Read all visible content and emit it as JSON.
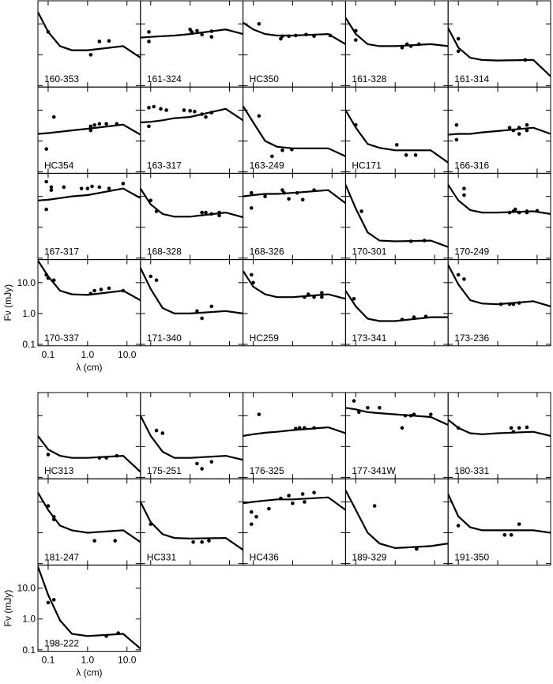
{
  "chart_data": [
    {
      "type": "line",
      "x_label": "λ (cm)",
      "y_label": "Fν (mJy)",
      "log_x": true,
      "log_y": true,
      "color": "#000000",
      "xlim": [
        0.055,
        22
      ],
      "ylim": [
        0.09,
        56
      ],
      "xticks": [
        0.1,
        {
          "value": 1,
          "label": "1.0"
        },
        {
          "value": 10,
          "label": "10.0"
        }
      ],
      "yticks": [
        0.1,
        {
          "value": 1,
          "label": "1.0"
        },
        {
          "value": 10,
          "label": "10.0"
        }
      ],
      "model_x": [
        0.055,
        0.1,
        0.2,
        0.4,
        1,
        8,
        22
      ],
      "panels": [
        {
          "label": "160-353",
          "model": [
            24,
            5.5,
            1.9,
            1.4,
            1.4,
            1.9,
            0.8
          ],
          "points": {
            "x": [
              0.1,
              1.2,
              2,
              3.5
            ],
            "y": [
              5.5,
              1.0,
              2.7,
              2.8
            ]
          }
        },
        {
          "label": "161-324",
          "model": [
            3.6,
            3.8,
            4.0,
            4.2,
            4.7,
            6.6,
            4.7
          ],
          "points": {
            "x": [
              0.09,
              0.09,
              1.0,
              1.1,
              1.5,
              2,
              3.5,
              3.5
            ],
            "y": [
              5.5,
              2.7,
              6.6,
              5.5,
              6.0,
              4.5,
              5.8,
              3.8
            ]
          }
        },
        {
          "label": "HC350",
          "model": [
            11,
            6.6,
            4.7,
            4.2,
            4.2,
            4.7,
            2.2
          ],
          "points": {
            "x": [
              0.14,
              0.5,
              0.55,
              0.8,
              1.2,
              2.2,
              3.5,
              9
            ],
            "y": [
              10,
              3.3,
              4.0,
              4.0,
              4.2,
              4.5,
              4.0,
              4.2
            ]
          }
        },
        {
          "label": "161-328",
          "model": [
            16,
            4.7,
            2.2,
            1.9,
            1.9,
            2.2,
            1.9
          ],
          "points": {
            "x": [
              0.1,
              0.1,
              1.5,
              2,
              2.5,
              4
            ],
            "y": [
              6.0,
              3.0,
              1.7,
              2.2,
              1.9,
              2.2
            ]
          }
        },
        {
          "label": "161-314",
          "model": [
            7.4,
            1.7,
            0.8,
            0.68,
            0.65,
            0.68,
            0.2
          ],
          "points": {
            "x": [
              0.1,
              0.1,
              5
            ],
            "y": [
              3.3,
              1.3,
              0.68
            ]
          }
        },
        {
          "label": "HC354",
          "model": [
            1.7,
            1.8,
            2.0,
            2.2,
            2.5,
            3.4,
            1.6
          ],
          "points": {
            "x": [
              0.09,
              0.14,
              1.2,
              1.2,
              1.5,
              2,
              3,
              5.5
            ],
            "y": [
              0.55,
              6.0,
              3.0,
              2.2,
              3.3,
              3.6,
              3.6,
              3.6
            ]
          }
        },
        {
          "label": "163-317",
          "model": [
            4.0,
            4.2,
            4.7,
            5.5,
            6.0,
            11,
            4.7
          ],
          "points": {
            "x": [
              0.09,
              0.12,
              0.18,
              0.25,
              0.7,
              1,
              1.3,
              2,
              2.5,
              3.5,
              0.09
            ],
            "y": [
              12,
              13,
              11,
              10,
              10,
              9.5,
              9,
              7.4,
              6.0,
              8.3,
              3.0
            ]
          }
        },
        {
          "label": "163-249",
          "model": [
            13.5,
            4.0,
            1.0,
            0.65,
            0.58,
            0.58,
            0.32
          ],
          "points": {
            "x": [
              0.14,
              0.3,
              0.55,
              0.95
            ],
            "y": [
              6.5,
              0.32,
              0.5,
              0.53
            ]
          }
        },
        {
          "label": "HC171",
          "model": [
            10,
            2.7,
            0.8,
            0.6,
            0.5,
            0.5,
            0.2
          ],
          "points": {
            "x": [
              0.1,
              1.1,
              1.9,
              3.3
            ],
            "y": [
              3.3,
              0.75,
              0.35,
              0.35
            ]
          }
        },
        {
          "label": "166-316",
          "model": [
            1.6,
            1.7,
            1.7,
            1.9,
            2.1,
            2.7,
            1.7
          ],
          "points": {
            "x": [
              0.09,
              0.09,
              2,
              2.5,
              3.5,
              3.5,
              5.5,
              5.5
            ],
            "y": [
              3.3,
              1.1,
              2.7,
              2.2,
              1.7,
              2.7,
              3.3,
              2.2
            ]
          }
        },
        {
          "label": "167-317",
          "model": [
            7.4,
            7.8,
            8.8,
            10,
            11,
            18,
            8.8
          ],
          "points": {
            "x": [
              0.09,
              0.09,
              0.12,
              0.12,
              0.25,
              0.7,
              1,
              1.3,
              2,
              3.5,
              8
            ],
            "y": [
              30,
              3.8,
              20,
              16,
              20,
              18,
              18,
              21,
              20,
              18,
              26
            ]
          }
        },
        {
          "label": "168-328",
          "model": [
            18,
            5.5,
            2.7,
            2.2,
            2.2,
            3.0,
            2.1
          ],
          "points": {
            "x": [
              0.1,
              0.14,
              2,
              2.5,
              3.5,
              5.5,
              5.5
            ],
            "y": [
              7.4,
              3.3,
              3.0,
              3.0,
              2.7,
              3.0,
              2.4
            ]
          }
        },
        {
          "label": "168-326",
          "model": [
            10,
            11,
            12,
            12,
            13,
            16,
            6.0
          ],
          "points": {
            "x": [
              0.09,
              0.09,
              0.2,
              0.55,
              0.6,
              0.8,
              1.3,
              1.8,
              3.5
            ],
            "y": [
              13,
              4.2,
              10,
              16,
              13,
              8.3,
              13,
              7.8,
              16
            ]
          }
        },
        {
          "label": "170-301",
          "model": [
            24,
            4.0,
            0.68,
            0.37,
            0.35,
            0.37,
            0.23
          ],
          "points": {
            "x": [
              0.14,
              2.5,
              5.5
            ],
            "y": [
              3.3,
              0.35,
              0.37
            ]
          }
        },
        {
          "label": "170-249",
          "model": [
            24,
            7.4,
            3.6,
            3.0,
            3.0,
            3.3,
            2.7
          ],
          "points": {
            "x": [
              0.14,
              0.14,
              2,
              2.5,
              2.8,
              3.5,
              5.5,
              5.5,
              10
            ],
            "y": [
              18,
              11,
              3.0,
              3.3,
              3.8,
              3.0,
              3.3,
              3.0,
              3.4
            ]
          }
        },
        {
          "label": "170-337",
          "model": [
            52,
            16,
            5.5,
            4.2,
            4.0,
            5.5,
            2.7
          ],
          "points": {
            "x": [
              0.09,
              0.1,
              0.14,
              1.2,
              1.5,
              2.2,
              3.5,
              8
            ],
            "y": [
              18,
              14,
              12,
              4.4,
              5.5,
              6.0,
              6.6,
              5.5
            ]
          }
        },
        {
          "label": "171-340",
          "model": [
            30,
            6.2,
            1.5,
            1.0,
            1.0,
            1.2,
            1.0
          ],
          "points": {
            "x": [
              0.1,
              0.14,
              1.5,
              2,
              3.5
            ],
            "y": [
              16,
              12,
              1.2,
              0.7,
              1.7
            ]
          }
        },
        {
          "label": "HC259",
          "model": [
            24,
            7.4,
            4.2,
            3.4,
            3.4,
            4.2,
            3.0
          ],
          "points": {
            "x": [
              0.09,
              0.1,
              2,
              2.5,
              3.5,
              5.5,
              5.5
            ],
            "y": [
              18,
              10,
              3.4,
              4.2,
              3.4,
              3.4,
              4.7
            ]
          }
        },
        {
          "label": "173-341",
          "model": [
            5.5,
            1.7,
            0.68,
            0.57,
            0.57,
            0.76,
            0.76
          ],
          "points": {
            "x": [
              0.09,
              1.5,
              3,
              6
            ],
            "y": [
              3.0,
              0.64,
              0.76,
              0.8
            ]
          }
        },
        {
          "label": "173-236",
          "model": [
            38,
            8.8,
            2.7,
            2.1,
            2.0,
            2.5,
            1.7
          ],
          "points": {
            "x": [
              0.1,
              0.14,
              1.2,
              2,
              2.5,
              3.5
            ],
            "y": [
              18,
              13,
              2.0,
              2.0,
              2.0,
              2.2
            ]
          }
        }
      ]
    },
    {
      "type": "line",
      "x_label": "λ (cm)",
      "y_label": "Fν (mJy)",
      "log_x": true,
      "log_y": true,
      "color": "#000000",
      "xlim": [
        0.055,
        22
      ],
      "ylim": [
        0.09,
        56
      ],
      "xticks": [
        0.1,
        {
          "value": 1,
          "label": "1.0"
        },
        {
          "value": 10,
          "label": "10.0"
        }
      ],
      "yticks": [
        0.1,
        {
          "value": 1,
          "label": "1.0"
        },
        {
          "value": 10,
          "label": "10.0"
        }
      ],
      "model_x": [
        0.055,
        0.1,
        0.2,
        0.4,
        1,
        8,
        22
      ],
      "panels": [
        {
          "label": "HC313",
          "model": [
            2.2,
            0.8,
            0.5,
            0.43,
            0.43,
            0.5,
            0.15
          ],
          "points": {
            "x": [
              0.1,
              2,
              3,
              5.5
            ],
            "y": [
              0.55,
              0.43,
              0.43,
              0.5
            ]
          }
        },
        {
          "label": "175-251",
          "model": [
            10,
            2.2,
            0.68,
            0.43,
            0.43,
            0.5,
            0.37
          ],
          "points": {
            "x": [
              0.14,
              0.2,
              1.5,
              2,
              3.5
            ],
            "y": [
              3.3,
              2.7,
              0.28,
              0.19,
              0.32
            ]
          }
        },
        {
          "label": "176-325",
          "model": [
            2.2,
            2.5,
            2.8,
            3.0,
            3.4,
            4.2,
            2.7
          ],
          "points": {
            "x": [
              0.14,
              1.2,
              1.5,
              2,
              3.5
            ],
            "y": [
              11,
              3.8,
              4.0,
              4.0,
              4.0
            ]
          }
        },
        {
          "label": "177-341W",
          "model": [
            18,
            16,
            13,
            12,
            11,
            9,
            5
          ],
          "points": {
            "x": [
              0.09,
              0.12,
              0.2,
              0.4,
              1.5,
              1.8,
              2.5,
              3,
              8
            ],
            "y": [
              30,
              13,
              18,
              18,
              4.0,
              10,
              10,
              11,
              11
            ]
          }
        },
        {
          "label": "180-331",
          "model": [
            7.4,
            4.0,
            2.7,
            2.5,
            2.7,
            3.0,
            2.2
          ],
          "points": {
            "x": [
              0.1,
              2.2,
              2.5,
              3.5,
              5.5
            ],
            "y": [
              4.0,
              4.0,
              3.0,
              4.0,
              4.2
            ]
          }
        },
        {
          "label": "181-247",
          "model": [
            20,
            5.5,
            1.7,
            1.2,
            1.0,
            1.2,
            0.5
          ],
          "points": {
            "x": [
              0.1,
              0.14,
              0.14,
              1.5,
              5
            ],
            "y": [
              7.4,
              3.3,
              2.7,
              0.55,
              0.55
            ]
          }
        },
        {
          "label": "HC331",
          "model": [
            10,
            2.2,
            0.9,
            0.68,
            0.65,
            0.68,
            0.28
          ],
          "points": {
            "x": [
              0.1,
              1.2,
              2,
              3
            ],
            "y": [
              1.9,
              0.5,
              0.5,
              0.55
            ]
          }
        },
        {
          "label": "HC436",
          "model": [
            9,
            10,
            11,
            12,
            12,
            14,
            5.5
          ],
          "points": {
            "x": [
              0.09,
              0.09,
              0.12,
              0.25,
              0.5,
              0.8,
              1.8,
              1,
              2,
              3.5
            ],
            "y": [
              1.9,
              4.7,
              3.3,
              6.0,
              13,
              16,
              18,
              9,
              10,
              20
            ]
          }
        },
        {
          "label": "189-329",
          "model": [
            24,
            5.5,
            1.0,
            0.45,
            0.32,
            0.37,
            0.45
          ],
          "points": {
            "x": [
              0.3,
              3.5
            ],
            "y": [
              7.4,
              0.3
            ]
          }
        },
        {
          "label": "191-350",
          "model": [
            18,
            3.4,
            1.5,
            1.2,
            1.2,
            1.2,
            1.0
          ],
          "points": {
            "x": [
              0.1,
              1.5,
              2.2,
              3.5
            ],
            "y": [
              1.7,
              0.85,
              0.85,
              1.9
            ]
          }
        },
        {
          "label": "198-222",
          "model": [
            50,
            6.0,
            0.9,
            0.33,
            0.28,
            0.33,
            0.11
          ],
          "points": {
            "x": [
              0.1,
              0.14,
              3,
              6
            ],
            "y": [
              3.4,
              4.2,
              0.28,
              0.35
            ]
          }
        }
      ]
    }
  ]
}
